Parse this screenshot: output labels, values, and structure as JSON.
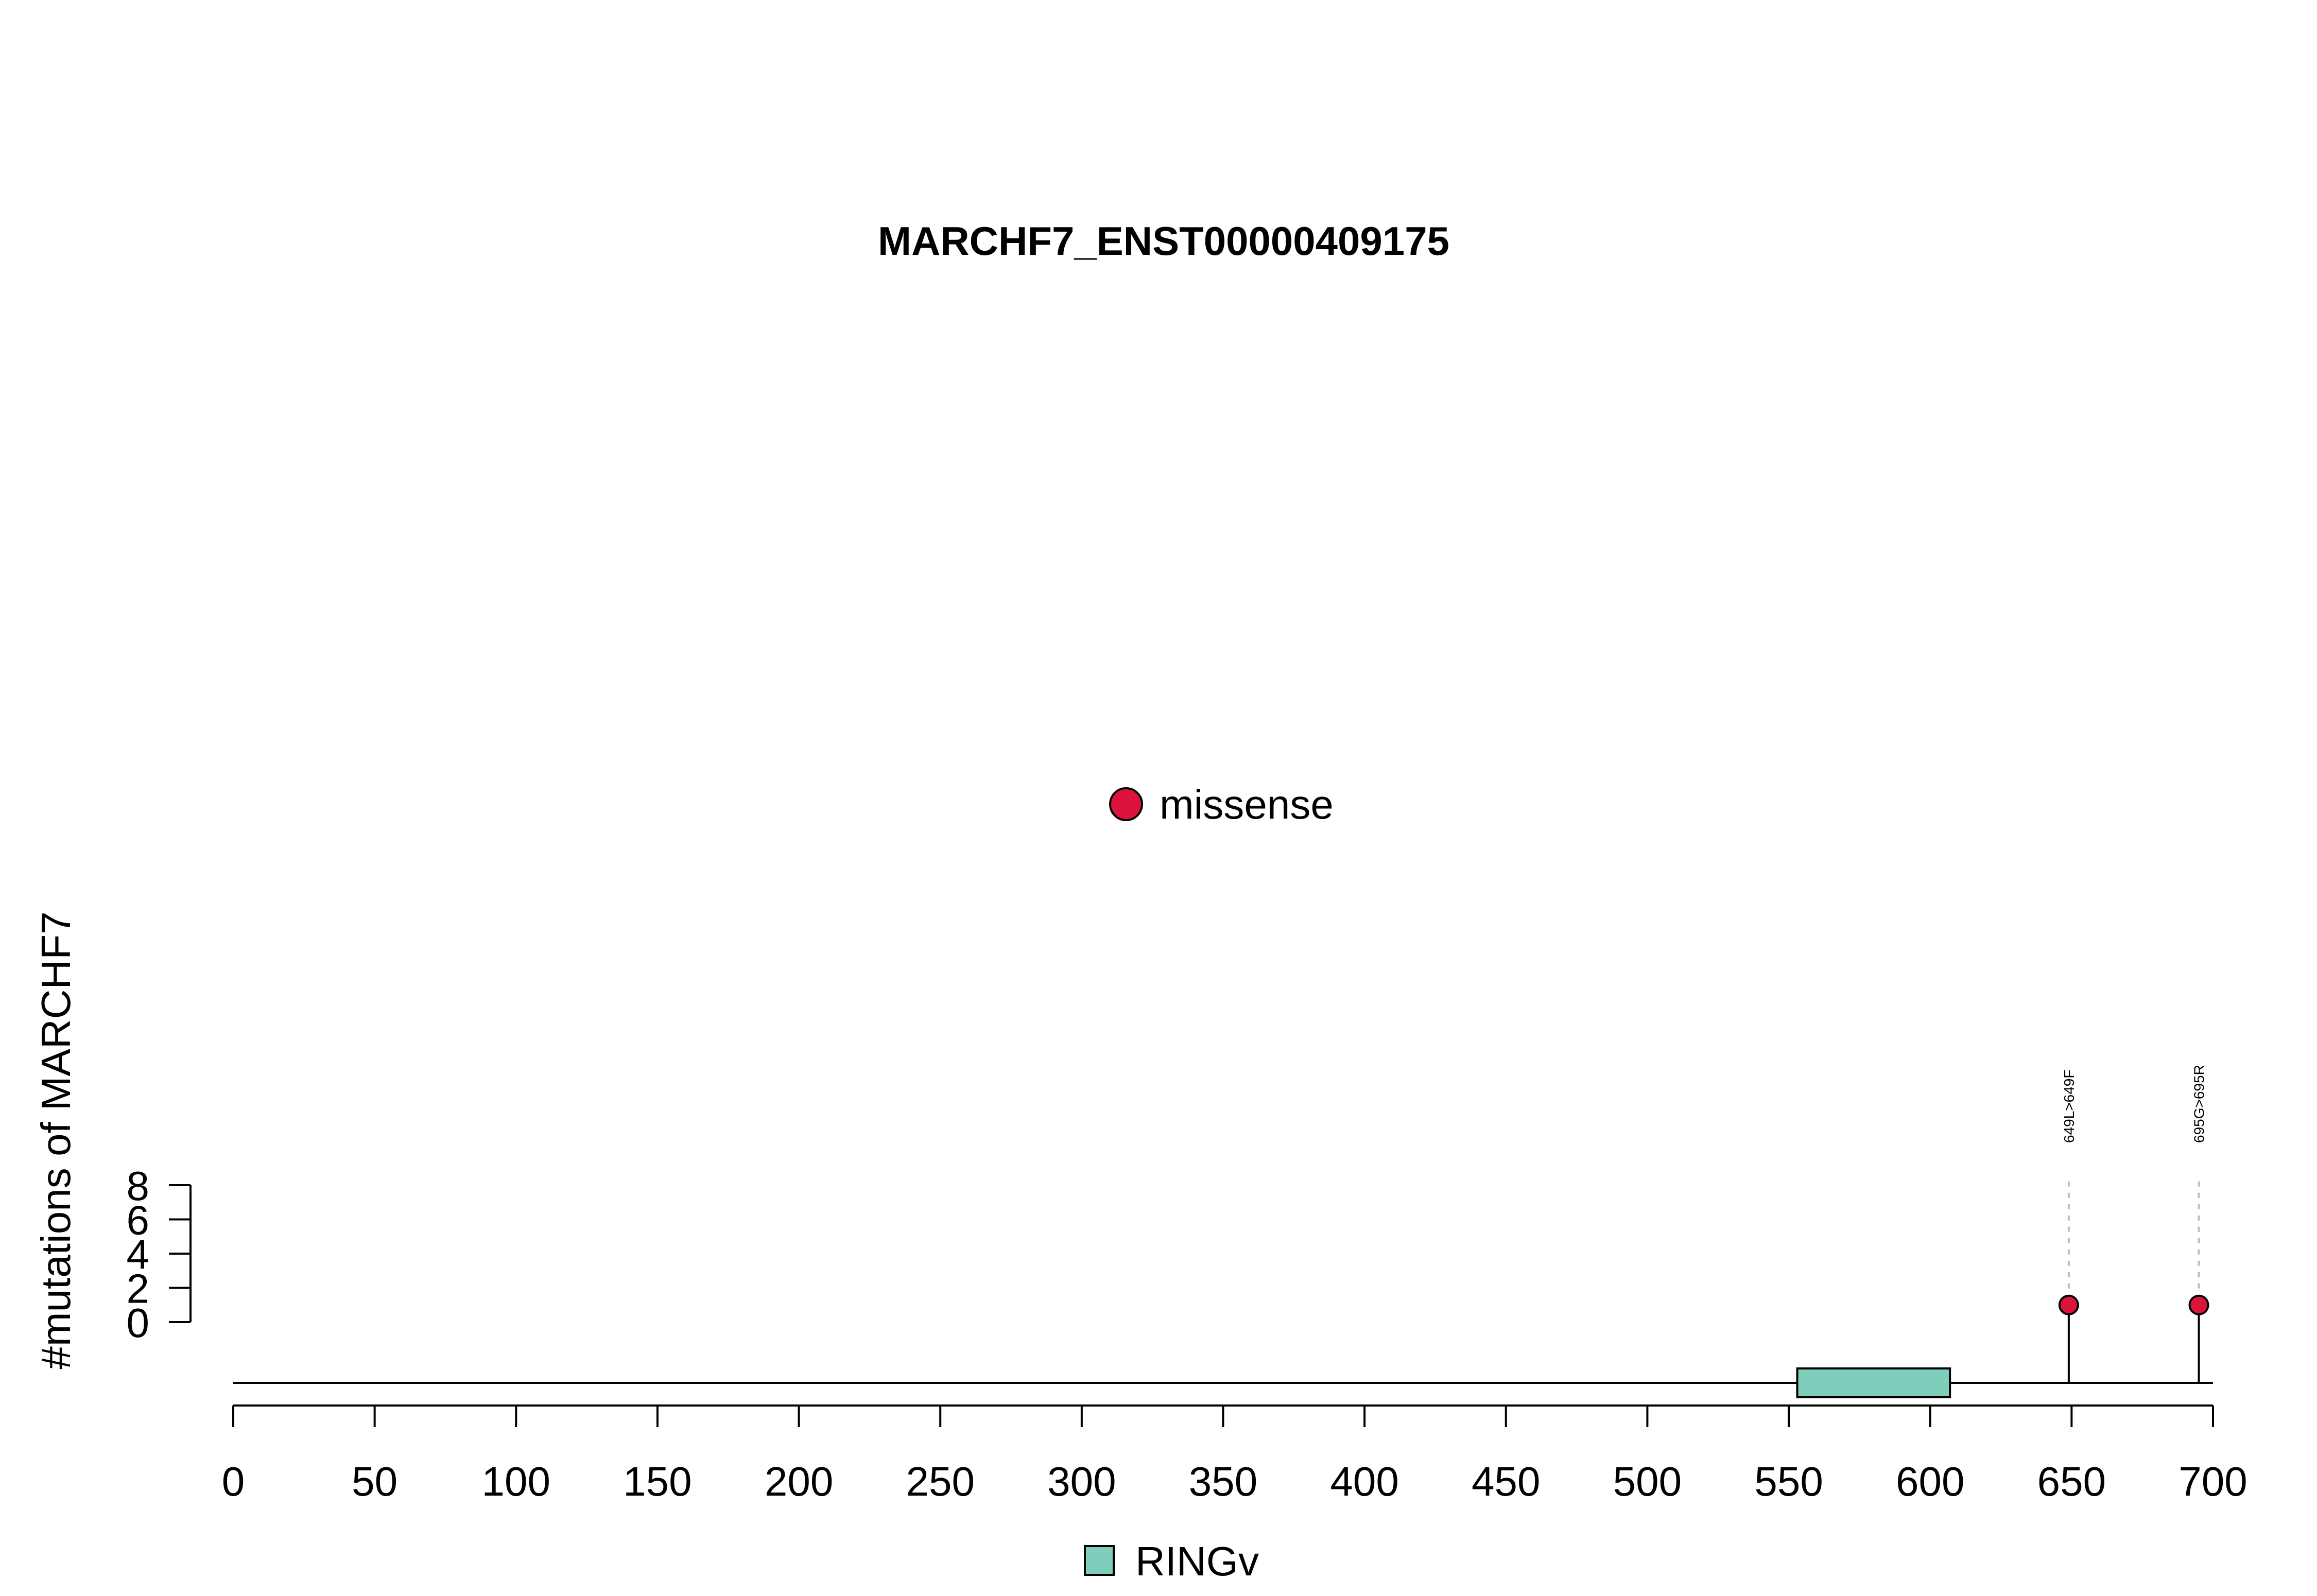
{
  "chart_data": {
    "type": "lollipop",
    "title": "MARCHF7_ENST00000409175",
    "ylabel": "#mutations of MARCHF7",
    "xlim": [
      0,
      700
    ],
    "x_ticks": [
      0,
      50,
      100,
      150,
      200,
      250,
      300,
      350,
      400,
      450,
      500,
      550,
      600,
      650,
      700
    ],
    "ylim": [
      0,
      8
    ],
    "y_ticks": [
      0,
      2,
      4,
      6,
      8
    ],
    "mutation_legend": {
      "label": "missense",
      "color": "#DC143C"
    },
    "domain_legend": {
      "label": "RINGv",
      "color": "#7FCDBB"
    },
    "domains": [
      {
        "name": "RINGv",
        "start": 553,
        "end": 607,
        "color": "#7FCDBB"
      }
    ],
    "mutations": [
      {
        "position": 649,
        "count": 1,
        "label": "649L>649F",
        "type": "missense"
      },
      {
        "position": 695,
        "count": 1,
        "label": "695G>695R",
        "type": "missense"
      }
    ]
  }
}
